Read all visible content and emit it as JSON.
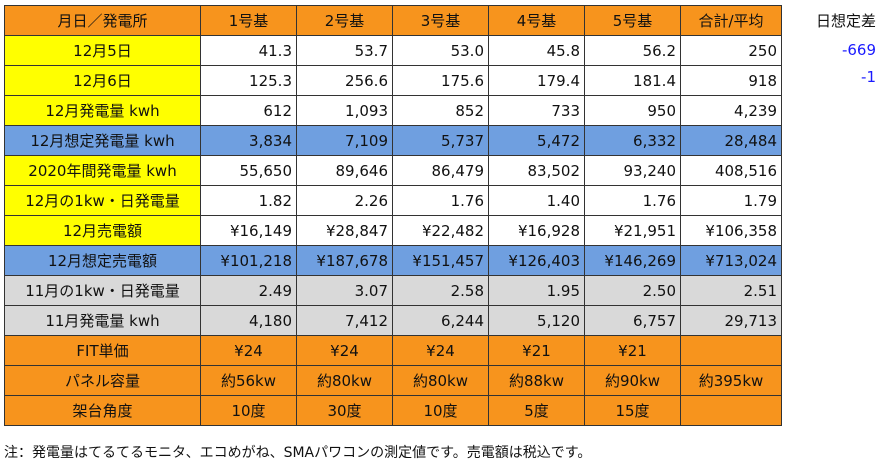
{
  "table": {
    "headers": [
      "月日／発電所",
      "1号基",
      "2号基",
      "3号基",
      "4号基",
      "5号基",
      "合計/平均"
    ],
    "rows": [
      {
        "label": "12月5日",
        "style": "bg-yellow",
        "values": [
          "41.3",
          "53.7",
          "53.0",
          "45.8",
          "56.2",
          "250"
        ]
      },
      {
        "label": "12月6日",
        "style": "bg-yellow",
        "values": [
          "125.3",
          "256.6",
          "175.6",
          "179.4",
          "181.4",
          "918"
        ]
      },
      {
        "label": "12月発電量 kwh",
        "style": "bg-yellow",
        "values": [
          "612",
          "1,093",
          "852",
          "733",
          "950",
          "4,239"
        ]
      },
      {
        "label": "12月想定発電量 kwh",
        "style": "bg-blue",
        "values": [
          "3,834",
          "7,109",
          "5,737",
          "5,472",
          "6,332",
          "28,484"
        ]
      },
      {
        "label": "2020年間発電量 kwh",
        "style": "bg-yellow",
        "values": [
          "55,650",
          "89,646",
          "86,479",
          "83,502",
          "93,240",
          "408,516"
        ]
      },
      {
        "label": "12月の1kw・日発電量",
        "style": "bg-yellow",
        "values": [
          "1.82",
          "2.26",
          "1.76",
          "1.40",
          "1.76",
          "1.79"
        ]
      },
      {
        "label": "12月売電額",
        "style": "bg-yellow",
        "values": [
          "¥16,149",
          "¥28,847",
          "¥22,482",
          "¥16,928",
          "¥21,951",
          "¥106,358"
        ]
      },
      {
        "label": "12月想定売電額",
        "style": "bg-blue",
        "values": [
          "¥101,218",
          "¥187,678",
          "¥151,457",
          "¥126,403",
          "¥146,269",
          "¥713,024"
        ]
      },
      {
        "label": "11月の1kw・日発電量",
        "style": "bg-gray",
        "values": [
          "2.49",
          "3.07",
          "2.58",
          "1.95",
          "2.50",
          "2.51"
        ]
      },
      {
        "label": "11月発電量 kwh",
        "style": "bg-gray",
        "values": [
          "4,180",
          "7,412",
          "6,244",
          "5,120",
          "6,757",
          "29,713"
        ]
      },
      {
        "label": "FIT単価",
        "style": "bg-orange",
        "values": [
          "¥24",
          "¥24",
          "¥24",
          "¥21",
          "¥21",
          ""
        ]
      },
      {
        "label": "パネル容量",
        "style": "bg-orange",
        "values": [
          "約56kw",
          "約80kw",
          "約80kw",
          "約88kw",
          "約90kw",
          "約395kw"
        ]
      },
      {
        "label": "架台角度",
        "style": "bg-orange",
        "values": [
          "10度",
          "30度",
          "10度",
          "5度",
          "15度",
          ""
        ]
      }
    ]
  },
  "side": {
    "title": "日想定差",
    "values": [
      "-669",
      "-1"
    ]
  },
  "note": "注：発電量はてるてるモニタ、エコめがね、SMAパワコンの測定値です。売電額は税込です。"
}
